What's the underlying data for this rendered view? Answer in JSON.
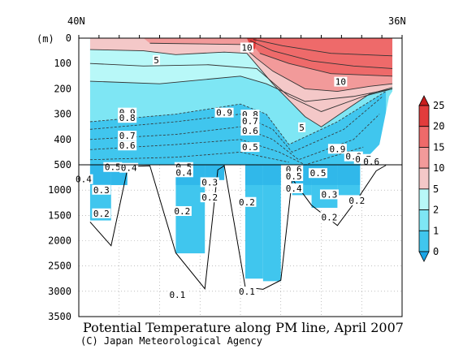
{
  "chart_data": {
    "type": "heatmap",
    "title": "Potential Temperature along PM line, April 2007",
    "credit": "(C) Japan Meteorological Agency",
    "ylabel": "(m)",
    "x_start_label": "40N",
    "x_end_label": "36N",
    "y_ticks_upper": [
      "0",
      "100",
      "200",
      "300",
      "400",
      "500"
    ],
    "y_ticks_lower": [
      "1000",
      "1500",
      "2000",
      "2500",
      "3000",
      "3500"
    ],
    "colorbar": {
      "labels": [
        "0",
        "1",
        "2",
        "5",
        "10",
        "15",
        "20",
        "25"
      ],
      "colors": [
        "#19a5e6",
        "#40c6ee",
        "#7ee6f4",
        "#b8f8f8",
        "#f4c8c8",
        "#f29a9a",
        "#ee6a6a",
        "#e23c3c",
        "#c81e1e"
      ]
    },
    "contour_labels": {
      "upper": [
        {
          "text": "10",
          "u": 0.52,
          "d": 40
        },
        {
          "text": "5",
          "u": 0.24,
          "d": 90
        },
        {
          "text": "10",
          "u": 0.81,
          "d": 175
        },
        {
          "text": "5",
          "u": 0.69,
          "d": 355
        },
        {
          "text": "0.9",
          "u": 0.15,
          "d": 297
        },
        {
          "text": "0.8",
          "u": 0.15,
          "d": 318
        },
        {
          "text": "0.7",
          "u": 0.15,
          "d": 388
        },
        {
          "text": "0.6",
          "u": 0.15,
          "d": 427
        },
        {
          "text": "0.9",
          "u": 0.45,
          "d": 297
        },
        {
          "text": "0.8",
          "u": 0.53,
          "d": 305
        },
        {
          "text": "0.7",
          "u": 0.53,
          "d": 330
        },
        {
          "text": "0.6",
          "u": 0.53,
          "d": 368
        },
        {
          "text": "0.5",
          "u": 0.53,
          "d": 433
        },
        {
          "text": "0.9",
          "u": 0.8,
          "d": 440
        },
        {
          "text": "0.8",
          "u": 0.85,
          "d": 470
        },
        {
          "text": "0.7",
          "u": 0.88,
          "d": 480
        },
        {
          "text": "0.6",
          "u": 0.905,
          "d": 490
        }
      ],
      "lower": [
        {
          "text": "0.5",
          "u": 0.105,
          "d": 0.02
        },
        {
          "text": "0.4",
          "u": 0.155,
          "d": 0.025
        },
        {
          "text": "0.4",
          "u": 0.015,
          "d": 0.1
        },
        {
          "text": "0.3",
          "u": 0.07,
          "d": 0.17
        },
        {
          "text": "0.2",
          "u": 0.07,
          "d": 0.325
        },
        {
          "text": "0.5",
          "u": 0.325,
          "d": 0.02
        },
        {
          "text": "0.4",
          "u": 0.325,
          "d": 0.055
        },
        {
          "text": "0.3",
          "u": 0.405,
          "d": 0.12
        },
        {
          "text": "0.2",
          "u": 0.405,
          "d": 0.22
        },
        {
          "text": "0.2",
          "u": 0.32,
          "d": 0.31
        },
        {
          "text": "0.2",
          "u": 0.52,
          "d": 0.25
        },
        {
          "text": "0.1",
          "u": 0.305,
          "d": 0.86
        },
        {
          "text": "0.1",
          "u": 0.52,
          "d": 0.84
        },
        {
          "text": "0.6",
          "u": 0.665,
          "d": 0.035
        },
        {
          "text": "0.5",
          "u": 0.665,
          "d": 0.08
        },
        {
          "text": "0.4",
          "u": 0.665,
          "d": 0.16
        },
        {
          "text": "0.5",
          "u": 0.74,
          "d": 0.06
        },
        {
          "text": "0.3",
          "u": 0.775,
          "d": 0.2
        },
        {
          "text": "0.2",
          "u": 0.775,
          "d": 0.35
        },
        {
          "text": "0.2",
          "u": 0.86,
          "d": 0.24
        }
      ]
    }
  }
}
